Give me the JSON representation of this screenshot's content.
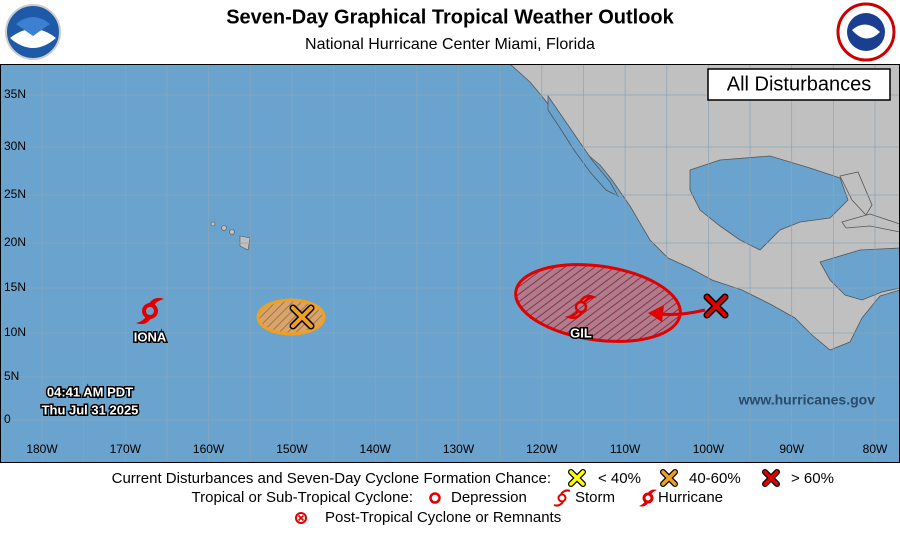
{
  "header": {
    "title": "Seven-Day Graphical Tropical Weather Outlook",
    "subtitle": "National Hurricane Center  Miami, Florida"
  },
  "map": {
    "label": "All Disturbances",
    "lat_labels": [
      "35N",
      "30N",
      "25N",
      "20N",
      "15N",
      "10N",
      "5N",
      "0"
    ],
    "lon_labels": [
      "180W",
      "170W",
      "160W",
      "150W",
      "140W",
      "130W",
      "120W",
      "110W",
      "100W",
      "90W",
      "80W"
    ],
    "storms": [
      {
        "name": "IONA"
      },
      {
        "name": "GIL"
      }
    ],
    "timestamp": [
      "04:41 AM PDT",
      "Thu Jul 31 2025"
    ],
    "website": "www.hurricanes.gov"
  },
  "legend": {
    "disturbances": {
      "label": "Current Disturbances and Seven-Day Cyclone Formation Chance:",
      "items": [
        "< 40%",
        "40-60%",
        "> 60%"
      ]
    },
    "cyclones": {
      "label": "Tropical or Sub-Tropical Cyclone:",
      "items": [
        "Depression",
        "Storm",
        "Hurricane"
      ]
    },
    "post_tropical": "Post-Tropical Cyclone or Remnants"
  }
}
